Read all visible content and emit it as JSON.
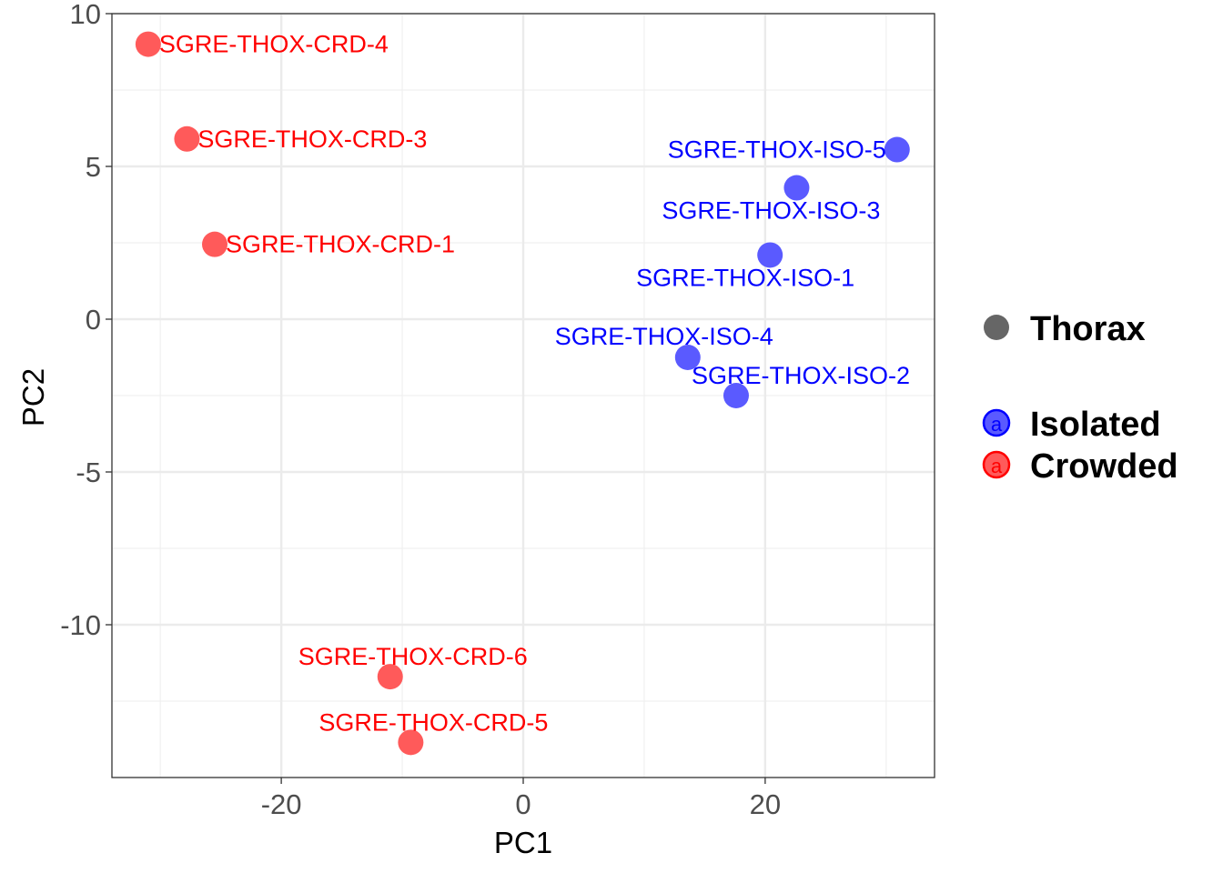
{
  "chart_data": {
    "type": "scatter",
    "xlabel": "PC1",
    "ylabel": "PC2",
    "xlim": [
      -34,
      34
    ],
    "ylim": [
      -15,
      10
    ],
    "x_ticks": [
      -20,
      0,
      20
    ],
    "x_tick_labels": [
      "-20",
      "0",
      "20"
    ],
    "y_ticks": [
      -10,
      -5,
      0,
      5,
      10
    ],
    "y_tick_labels": [
      "-10",
      "-5",
      "0",
      "5",
      "10"
    ],
    "grid": true,
    "legend_position": "right",
    "legend": {
      "shape_title": "Thorax",
      "groups": [
        {
          "name": "Isolated",
          "color": "#5a5aff",
          "key_letter": "a"
        },
        {
          "name": "Crowded",
          "color": "#ff5a5a",
          "key_letter": "a"
        }
      ]
    },
    "series": [
      {
        "name": "Crowded",
        "color": "#ff5a5a",
        "label_color": "#ff0000",
        "points": [
          {
            "label": "SGRE-THOX-CRD-4",
            "x": -31.0,
            "y": 9.0,
            "label_anchor": "right"
          },
          {
            "label": "SGRE-THOX-CRD-3",
            "x": -27.8,
            "y": 5.9,
            "label_anchor": "right"
          },
          {
            "label": "SGRE-THOX-CRD-1",
            "x": -25.5,
            "y": 2.45,
            "label_anchor": "right"
          },
          {
            "label": "SGRE-THOX-CRD-6",
            "x": -11.0,
            "y": -11.7,
            "label_anchor": "above"
          },
          {
            "label": "SGRE-THOX-CRD-5",
            "x": -9.3,
            "y": -13.85,
            "label_anchor": "above"
          }
        ]
      },
      {
        "name": "Isolated",
        "color": "#5a5aff",
        "label_color": "#0000ff",
        "points": [
          {
            "label": "SGRE-THOX-ISO-5",
            "x": 30.9,
            "y": 5.55,
            "label_anchor": "left"
          },
          {
            "label": "SGRE-THOX-ISO-3",
            "x": 22.6,
            "y": 4.3,
            "label_anchor": "below"
          },
          {
            "label": "SGRE-THOX-ISO-1",
            "x": 20.4,
            "y": 2.1,
            "label_anchor": "below-left"
          },
          {
            "label": "SGRE-THOX-ISO-4",
            "x": 13.6,
            "y": -1.25,
            "label_anchor": "above-left"
          },
          {
            "label": "SGRE-THOX-ISO-2",
            "x": 17.6,
            "y": -2.5,
            "label_anchor": "above-right"
          }
        ]
      }
    ]
  }
}
